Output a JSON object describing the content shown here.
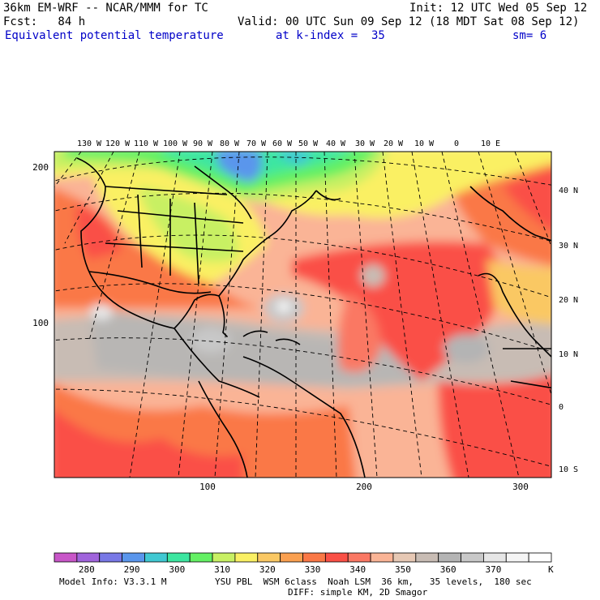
{
  "header": {
    "model_title": "36km EM-WRF -- NCAR/MMM for TC",
    "init_label": "Init: 12 UTC Wed 05 Sep 12",
    "fcst_label": "Fcst:   84 h",
    "valid_label": "Valid: 00 UTC Sun 09 Sep 12 (18 MDT Sat 08 Sep 12)",
    "field_name": "Equivalent potential temperature",
    "level_label": "at k-index =  35",
    "smoothing_label": "sm= 6"
  },
  "map": {
    "top_lon_labels": [
      "130 W",
      "120 W",
      "110 W",
      "100 W",
      "90 W",
      "80 W",
      "70 W",
      "60 W",
      "50 W",
      "40 W",
      "30 W",
      "20 W",
      "10 W",
      "0",
      "10 E"
    ],
    "right_lat_labels": [
      "40 N",
      "30 N",
      "20 N",
      "10 N",
      "0",
      "10 S"
    ],
    "left_grid_labels": [
      "200",
      "100"
    ],
    "bottom_grid_labels": [
      "100",
      "200",
      "300"
    ]
  },
  "colorbar": {
    "colors": [
      "#c856c8",
      "#a064dc",
      "#7878e6",
      "#5a96ec",
      "#40c8d2",
      "#3ce6a0",
      "#64f064",
      "#c8f064",
      "#faf064",
      "#fac864",
      "#faa050",
      "#fa7846",
      "#fa5046",
      "#fa7864",
      "#fab496",
      "#e6c8b4",
      "#c8bcb4",
      "#b4b4b4",
      "#c8c8c8",
      "#e6e6e6",
      "#f5f5f5",
      "#ffffff"
    ],
    "tick_labels": [
      "280",
      "290",
      "300",
      "310",
      "320",
      "330",
      "340",
      "350",
      "360",
      "370"
    ],
    "unit": "K"
  },
  "footer": {
    "model_info": "Model Info: V3.3.1 M",
    "physics": "YSU PBL  WSM 6class  Noah LSM  36 km,   35 levels,  180 sec",
    "diffusion": "DIFF: simple KM, 2D Smagor"
  }
}
